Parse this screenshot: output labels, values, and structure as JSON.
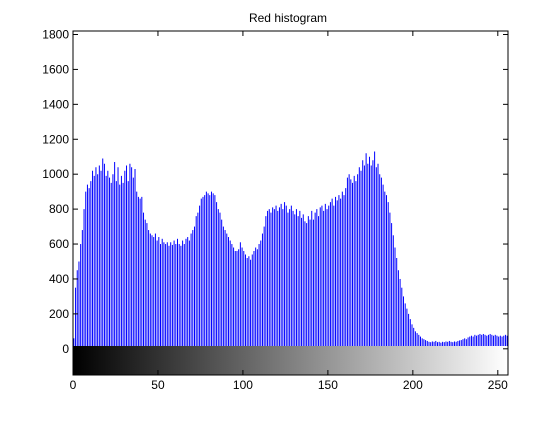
{
  "chart_data": {
    "type": "bar",
    "title": "Red histogram",
    "xlabel": "",
    "ylabel": "",
    "xlim": [
      0,
      256
    ],
    "ylim": [
      -150,
      1820
    ],
    "xticks": [
      0,
      50,
      100,
      150,
      200,
      250
    ],
    "yticks": [
      0,
      200,
      400,
      600,
      800,
      1000,
      1200,
      1400,
      1600,
      1800
    ],
    "grid": false,
    "legend": "none",
    "bar_color": "#0000ff",
    "colorbar": "grayscale gradient, black at 0 to white at 255, drawn below zero",
    "anchors": [
      [
        0,
        60
      ],
      [
        1,
        350
      ],
      [
        2,
        450
      ],
      [
        3,
        500
      ],
      [
        4,
        600
      ],
      [
        5,
        680
      ],
      [
        6,
        800
      ],
      [
        7,
        900
      ],
      [
        8,
        940
      ],
      [
        9,
        920
      ],
      [
        10,
        960
      ],
      [
        11,
        1020
      ],
      [
        12,
        990
      ],
      [
        13,
        1040
      ],
      [
        14,
        1000
      ],
      [
        15,
        1050
      ],
      [
        16,
        1020
      ],
      [
        17,
        1090
      ],
      [
        18,
        1060
      ],
      [
        19,
        990
      ],
      [
        20,
        1020
      ],
      [
        21,
        980
      ],
      [
        22,
        950
      ],
      [
        23,
        1000
      ],
      [
        24,
        1070
      ],
      [
        25,
        960
      ],
      [
        26,
        1040
      ],
      [
        27,
        940
      ],
      [
        28,
        990
      ],
      [
        29,
        950
      ],
      [
        30,
        1020
      ],
      [
        31,
        1050
      ],
      [
        32,
        960
      ],
      [
        33,
        1060
      ],
      [
        34,
        1040
      ],
      [
        35,
        980
      ],
      [
        36,
        1030
      ],
      [
        37,
        900
      ],
      [
        38,
        870
      ],
      [
        39,
        860
      ],
      [
        40,
        870
      ],
      [
        41,
        780
      ],
      [
        42,
        740
      ],
      [
        43,
        720
      ],
      [
        44,
        680
      ],
      [
        45,
        660
      ],
      [
        46,
        650
      ],
      [
        47,
        640
      ],
      [
        48,
        660
      ],
      [
        49,
        620
      ],
      [
        50,
        640
      ],
      [
        51,
        600
      ],
      [
        52,
        630
      ],
      [
        53,
        610
      ],
      [
        54,
        600
      ],
      [
        55,
        610
      ],
      [
        56,
        590
      ],
      [
        57,
        610
      ],
      [
        58,
        595
      ],
      [
        59,
        620
      ],
      [
        60,
        600
      ],
      [
        61,
        630
      ],
      [
        62,
        600
      ],
      [
        63,
        590
      ],
      [
        64,
        620
      ],
      [
        65,
        600
      ],
      [
        66,
        630
      ],
      [
        67,
        640
      ],
      [
        68,
        620
      ],
      [
        69,
        660
      ],
      [
        70,
        680
      ],
      [
        71,
        700
      ],
      [
        72,
        760
      ],
      [
        73,
        780
      ],
      [
        74,
        820
      ],
      [
        75,
        860
      ],
      [
        76,
        870
      ],
      [
        77,
        880
      ],
      [
        78,
        900
      ],
      [
        79,
        890
      ],
      [
        80,
        880
      ],
      [
        81,
        900
      ],
      [
        82,
        890
      ],
      [
        83,
        880
      ],
      [
        84,
        840
      ],
      [
        85,
        800
      ],
      [
        86,
        780
      ],
      [
        87,
        740
      ],
      [
        88,
        700
      ],
      [
        89,
        680
      ],
      [
        90,
        660
      ],
      [
        91,
        640
      ],
      [
        92,
        620
      ],
      [
        93,
        600
      ],
      [
        94,
        580
      ],
      [
        95,
        560
      ],
      [
        96,
        560
      ],
      [
        97,
        570
      ],
      [
        98,
        610
      ],
      [
        99,
        580
      ],
      [
        100,
        560
      ],
      [
        101,
        540
      ],
      [
        102,
        520
      ],
      [
        103,
        530
      ],
      [
        104,
        510
      ],
      [
        105,
        540
      ],
      [
        106,
        560
      ],
      [
        107,
        580
      ],
      [
        108,
        570
      ],
      [
        109,
        600
      ],
      [
        110,
        620
      ],
      [
        111,
        660
      ],
      [
        112,
        700
      ],
      [
        113,
        760
      ],
      [
        114,
        790
      ],
      [
        115,
        800
      ],
      [
        116,
        780
      ],
      [
        117,
        810
      ],
      [
        118,
        800
      ],
      [
        119,
        820
      ],
      [
        120,
        790
      ],
      [
        121,
        810
      ],
      [
        122,
        830
      ],
      [
        123,
        800
      ],
      [
        124,
        840
      ],
      [
        125,
        820
      ],
      [
        126,
        780
      ],
      [
        127,
        800
      ],
      [
        128,
        820
      ],
      [
        129,
        790
      ],
      [
        130,
        770
      ],
      [
        131,
        800
      ],
      [
        132,
        760
      ],
      [
        133,
        790
      ],
      [
        134,
        750
      ],
      [
        135,
        770
      ],
      [
        136,
        730
      ],
      [
        137,
        720
      ],
      [
        138,
        760
      ],
      [
        139,
        740
      ],
      [
        140,
        790
      ],
      [
        141,
        740
      ],
      [
        142,
        780
      ],
      [
        143,
        800
      ],
      [
        144,
        760
      ],
      [
        145,
        810
      ],
      [
        146,
        820
      ],
      [
        147,
        790
      ],
      [
        148,
        830
      ],
      [
        149,
        800
      ],
      [
        150,
        820
      ],
      [
        151,
        840
      ],
      [
        152,
        860
      ],
      [
        153,
        820
      ],
      [
        154,
        870
      ],
      [
        155,
        850
      ],
      [
        156,
        880
      ],
      [
        157,
        860
      ],
      [
        158,
        900
      ],
      [
        159,
        880
      ],
      [
        160,
        920
      ],
      [
        161,
        980
      ],
      [
        162,
        1000
      ],
      [
        163,
        970
      ],
      [
        164,
        950
      ],
      [
        165,
        990
      ],
      [
        166,
        960
      ],
      [
        167,
        1000
      ],
      [
        168,
        1040
      ],
      [
        169,
        1020
      ],
      [
        170,
        1080
      ],
      [
        171,
        1050
      ],
      [
        172,
        1120
      ],
      [
        173,
        1060
      ],
      [
        174,
        1100
      ],
      [
        175,
        1050
      ],
      [
        176,
        1080
      ],
      [
        177,
        1130
      ],
      [
        178,
        1040
      ],
      [
        179,
        1060
      ],
      [
        180,
        1000
      ],
      [
        181,
        980
      ],
      [
        182,
        940
      ],
      [
        183,
        900
      ],
      [
        184,
        880
      ],
      [
        185,
        840
      ],
      [
        186,
        780
      ],
      [
        187,
        720
      ],
      [
        188,
        650
      ],
      [
        189,
        580
      ],
      [
        190,
        520
      ],
      [
        191,
        450
      ],
      [
        192,
        400
      ],
      [
        193,
        350
      ],
      [
        194,
        300
      ],
      [
        195,
        260
      ],
      [
        196,
        230
      ],
      [
        197,
        200
      ],
      [
        198,
        170
      ],
      [
        199,
        140
      ],
      [
        200,
        120
      ],
      [
        201,
        100
      ],
      [
        202,
        90
      ],
      [
        203,
        80
      ],
      [
        204,
        70
      ],
      [
        205,
        60
      ],
      [
        206,
        55
      ],
      [
        207,
        50
      ],
      [
        208,
        45
      ],
      [
        209,
        40
      ],
      [
        210,
        38
      ],
      [
        211,
        42
      ],
      [
        212,
        40
      ],
      [
        213,
        45
      ],
      [
        214,
        38
      ],
      [
        215,
        40
      ],
      [
        216,
        35
      ],
      [
        217,
        40
      ],
      [
        218,
        38
      ],
      [
        219,
        42
      ],
      [
        220,
        40
      ],
      [
        221,
        45
      ],
      [
        222,
        40
      ],
      [
        223,
        38
      ],
      [
        224,
        42
      ],
      [
        225,
        40
      ],
      [
        226,
        45
      ],
      [
        227,
        48
      ],
      [
        228,
        50
      ],
      [
        229,
        55
      ],
      [
        230,
        60
      ],
      [
        231,
        55
      ],
      [
        232,
        65
      ],
      [
        233,
        70
      ],
      [
        234,
        75
      ],
      [
        235,
        70
      ],
      [
        236,
        80
      ],
      [
        237,
        75
      ],
      [
        238,
        80
      ],
      [
        239,
        85
      ],
      [
        240,
        80
      ],
      [
        241,
        85
      ],
      [
        242,
        80
      ],
      [
        243,
        75
      ],
      [
        244,
        80
      ],
      [
        245,
        85
      ],
      [
        246,
        80
      ],
      [
        247,
        75
      ],
      [
        248,
        80
      ],
      [
        249,
        75
      ],
      [
        250,
        70
      ],
      [
        251,
        75
      ],
      [
        252,
        70
      ],
      [
        253,
        75
      ],
      [
        254,
        80
      ],
      [
        255,
        75
      ]
    ]
  }
}
